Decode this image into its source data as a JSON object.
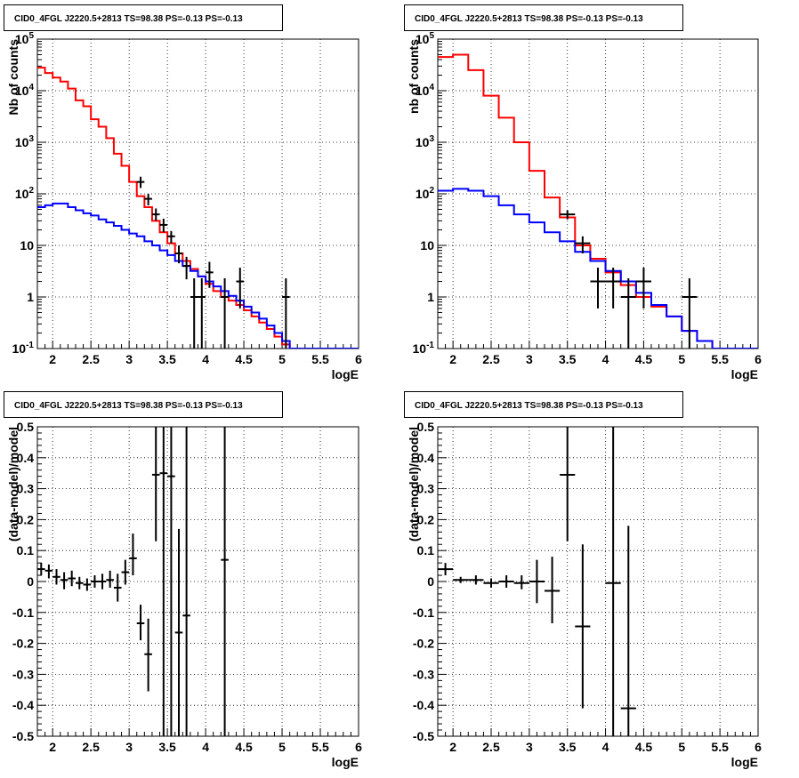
{
  "chart_data": [
    {
      "type": "line",
      "title": "CID0_4FGL J2220.5+2813 TS=98.38 PS=-0.13 PS=-0.13",
      "xlabel": "logE",
      "ylabel": "Nb of counts",
      "xlim": [
        1.8,
        6.0
      ],
      "ylim": [
        0.1,
        100000
      ],
      "yscale": "log",
      "grid": true,
      "x_ticks": [
        "2",
        "2.5",
        "3",
        "3.5",
        "4",
        "4.5",
        "5",
        "5.5",
        "6"
      ],
      "y_ticks": [
        "10^-1",
        "1",
        "10",
        "10^2",
        "10^3",
        "10^4",
        "10^5"
      ],
      "series": [
        {
          "color": "#ff0000",
          "bin_width": 0.1,
          "x_low": [
            1.8,
            1.9,
            2.0,
            2.1,
            2.2,
            2.3,
            2.4,
            2.5,
            2.6,
            2.7,
            2.8,
            2.9,
            3.0,
            3.1,
            3.2,
            3.3,
            3.4,
            3.5,
            3.6,
            3.7,
            3.8,
            3.9,
            4.0,
            4.1,
            4.2,
            4.3,
            4.4,
            4.5,
            4.6,
            4.7,
            4.8,
            4.9,
            5.0,
            5.1,
            5.2,
            5.3,
            5.4,
            5.5,
            5.6,
            5.7,
            5.8,
            5.9
          ],
          "values": [
            28000,
            22000,
            18000,
            15000,
            11000,
            6500,
            5000,
            2800,
            2000,
            1200,
            600,
            350,
            170,
            90,
            55,
            30,
            18,
            11,
            7,
            5,
            3.5,
            2.5,
            1.8,
            1.3,
            1.0,
            0.85,
            0.7,
            0.55,
            0.42,
            0.32,
            0.24,
            0.17,
            0.12,
            0.1,
            0.1,
            0.1,
            0.1,
            0.1,
            0.1,
            0.1,
            0.1,
            0.1
          ]
        },
        {
          "color": "#0000ff",
          "bin_width": 0.1,
          "x_low": [
            1.8,
            1.9,
            2.0,
            2.1,
            2.2,
            2.3,
            2.4,
            2.5,
            2.6,
            2.7,
            2.8,
            2.9,
            3.0,
            3.1,
            3.2,
            3.3,
            3.4,
            3.5,
            3.6,
            3.7,
            3.8,
            3.9,
            4.0,
            4.1,
            4.2,
            4.3,
            4.4,
            4.5,
            4.6,
            4.7,
            4.8,
            4.9,
            5.0,
            5.1,
            5.2,
            5.3,
            5.4,
            5.5,
            5.6,
            5.7,
            5.8,
            5.9
          ],
          "values": [
            55,
            60,
            65,
            65,
            55,
            48,
            42,
            38,
            32,
            28,
            24,
            20,
            17,
            15,
            12,
            10,
            8,
            6.5,
            5,
            4,
            3.2,
            2.5,
            2.0,
            1.6,
            1.3,
            1.05,
            0.85,
            0.65,
            0.5,
            0.38,
            0.28,
            0.2,
            0.14,
            0.1,
            0.1,
            0.1,
            0.1,
            0.1,
            0.1,
            0.1,
            0.1,
            0.1
          ]
        }
      ],
      "points": {
        "x": [
          3.15,
          3.25,
          3.35,
          3.45,
          3.55,
          3.65,
          3.75,
          3.85,
          3.95,
          4.05,
          4.25,
          4.45,
          5.05
        ],
        "y": [
          170,
          80,
          40,
          25,
          15,
          7,
          4,
          1,
          1,
          3,
          1,
          2,
          1
        ],
        "xerr": 0.05,
        "err_low": [
          130,
          60,
          30,
          18,
          11,
          4.5,
          2.2,
          0.1,
          0.1,
          1.5,
          0.1,
          0.6,
          0.1
        ],
        "err_high": [
          215,
          100,
          52,
          33,
          19,
          10,
          6,
          2.3,
          2.3,
          4.8,
          2.3,
          3.7,
          2.3
        ]
      }
    },
    {
      "type": "line",
      "title": "CID0_4FGL J2220.5+2813 TS=98.38 PS=-0.13 PS=-0.13",
      "xlabel": "logE",
      "ylabel": "nb of counts",
      "xlim": [
        1.8,
        6.0
      ],
      "ylim": [
        0.1,
        100000
      ],
      "yscale": "log",
      "grid": true,
      "x_ticks": [
        "2",
        "2.5",
        "3",
        "3.5",
        "4",
        "4.5",
        "5",
        "5.5",
        "6"
      ],
      "y_ticks": [
        "10^-1",
        "1",
        "10",
        "10^2",
        "10^3",
        "10^4",
        "10^5"
      ],
      "series": [
        {
          "color": "#ff0000",
          "bin_width": 0.2,
          "x_low": [
            1.8,
            2.0,
            2.2,
            2.4,
            2.6,
            2.8,
            3.0,
            3.2,
            3.4,
            3.6,
            3.8,
            4.0,
            4.2,
            4.4,
            4.6,
            4.8,
            5.0,
            5.2,
            5.4,
            5.6,
            5.8
          ],
          "values": [
            45000,
            50000,
            25000,
            8000,
            3000,
            1000,
            280,
            85,
            35,
            10,
            5.5,
            3.0,
            1.7,
            1.0,
            0.65,
            0.42,
            0.22,
            0.14,
            0.1,
            0.1,
            0.1
          ]
        },
        {
          "color": "#0000ff",
          "bin_width": 0.2,
          "x_low": [
            1.8,
            2.0,
            2.2,
            2.4,
            2.6,
            2.8,
            3.0,
            3.2,
            3.4,
            3.6,
            3.8,
            4.0,
            4.2,
            4.4,
            4.6,
            4.8,
            5.0,
            5.2,
            5.4,
            5.6,
            5.8
          ],
          "values": [
            115,
            125,
            115,
            90,
            60,
            40,
            28,
            18,
            12,
            7.5,
            5,
            3.2,
            2.0,
            1.2,
            0.7,
            0.42,
            0.22,
            0.14,
            0.1,
            0.1,
            0.1
          ]
        }
      ],
      "points": {
        "x": [
          3.5,
          3.7,
          3.9,
          4.1,
          4.3,
          4.5,
          5.1
        ],
        "y": [
          40,
          11,
          2,
          2,
          1,
          2,
          1
        ],
        "xerr": 0.1,
        "err_low": [
          32,
          7,
          0.6,
          0.6,
          0.1,
          0.6,
          0.1
        ],
        "err_high": [
          48,
          15,
          3.7,
          3.7,
          2.3,
          3.7,
          2.3
        ]
      }
    },
    {
      "type": "scatter",
      "title": "CID0_4FGL J2220.5+2813 TS=98.38 PS=-0.13 PS=-0.13",
      "xlabel": "logE",
      "ylabel": "(data-model)/model",
      "xlim": [
        1.8,
        6.0
      ],
      "ylim": [
        -0.5,
        0.5
      ],
      "grid": true,
      "x_ticks": [
        "2",
        "2.5",
        "3",
        "3.5",
        "4",
        "4.5",
        "5",
        "5.5",
        "6"
      ],
      "y_ticks": [
        "-0.5",
        "-0.4",
        "-0.3",
        "-0.2",
        "-0.1",
        "0",
        "0.1",
        "0.2",
        "0.3",
        "0.4",
        "0.5"
      ],
      "points": {
        "x": [
          1.85,
          1.95,
          2.05,
          2.15,
          2.25,
          2.35,
          2.45,
          2.55,
          2.65,
          2.75,
          2.85,
          2.95,
          3.05,
          3.15,
          3.25,
          3.35,
          3.45,
          3.55,
          3.65,
          3.75,
          4.25
        ],
        "y": [
          0.04,
          0.035,
          0.015,
          0.005,
          0.01,
          -0.005,
          -0.01,
          0.0,
          0.0,
          0.005,
          -0.02,
          0.03,
          0.075,
          -0.135,
          -0.235,
          0.345,
          0.35,
          0.34,
          -0.165,
          -0.11,
          0.07
        ],
        "xerr": 0.05,
        "err_low": [
          0.02,
          0.01,
          -0.01,
          -0.025,
          -0.015,
          -0.025,
          -0.03,
          -0.02,
          -0.025,
          -0.02,
          -0.065,
          -0.01,
          0.02,
          -0.19,
          -0.355,
          0.13,
          -0.5,
          -0.5,
          -0.5,
          -0.5,
          -0.5
        ],
        "err_high": [
          0.06,
          0.055,
          0.04,
          0.03,
          0.035,
          0.015,
          0.01,
          0.02,
          0.025,
          0.035,
          0.025,
          0.07,
          0.155,
          -0.075,
          -0.12,
          0.5,
          0.5,
          0.5,
          0.17,
          0.5,
          0.5
        ]
      }
    },
    {
      "type": "scatter",
      "title": "CID0_4FGL J2220.5+2813 TS=98.38 PS=-0.13 PS=-0.13",
      "xlabel": "logE",
      "ylabel": "(data-model)/model",
      "xlim": [
        1.8,
        6.0
      ],
      "ylim": [
        -0.5,
        0.5
      ],
      "grid": true,
      "x_ticks": [
        "2",
        "2.5",
        "3",
        "3.5",
        "4",
        "4.5",
        "5",
        "5.5",
        "6"
      ],
      "y_ticks": [
        "-0.5",
        "-0.4",
        "-0.3",
        "-0.2",
        "-0.1",
        "0",
        "0.1",
        "0.2",
        "0.3",
        "0.4",
        "0.5"
      ],
      "points": {
        "x": [
          1.9,
          2.1,
          2.3,
          2.5,
          2.7,
          2.9,
          3.1,
          3.3,
          3.5,
          3.7,
          4.1,
          4.3
        ],
        "y": [
          0.04,
          0.005,
          0.005,
          -0.005,
          0.0,
          -0.005,
          0.0,
          -0.03,
          0.345,
          -0.145,
          -0.005,
          -0.41
        ],
        "xerr": 0.1,
        "err_low": [
          0.02,
          -0.005,
          -0.01,
          -0.02,
          -0.02,
          -0.025,
          -0.07,
          -0.135,
          0.13,
          -0.41,
          -0.5,
          -0.5
        ],
        "err_high": [
          0.06,
          0.015,
          0.02,
          0.01,
          0.02,
          0.02,
          0.07,
          0.08,
          0.5,
          0.12,
          0.5,
          0.18
        ]
      }
    }
  ]
}
